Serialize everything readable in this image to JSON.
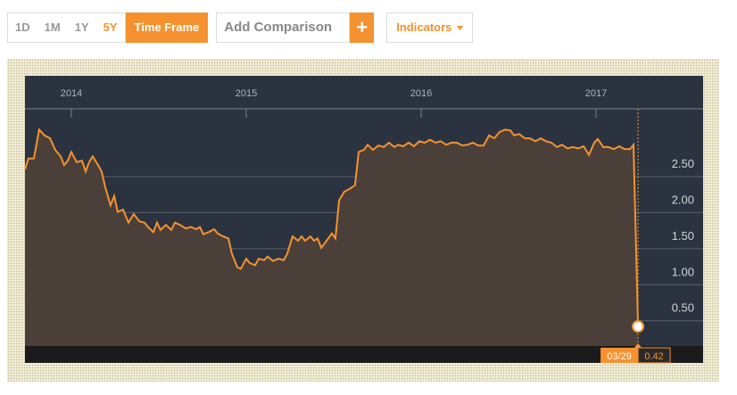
{
  "toolbar": {
    "ranges": [
      "1D",
      "1M",
      "1Y",
      "5Y"
    ],
    "time_frame": "Time Frame",
    "comparison_placeholder": "Add Comparison",
    "add": "+",
    "indicators": "Indicators"
  },
  "chart_data": {
    "type": "area",
    "color": "#f5922f",
    "fill": "#4b3f3a",
    "x": [
      2013.735,
      2013.755,
      2013.786,
      2013.816,
      2013.847,
      2013.878,
      2013.908,
      2013.939,
      2013.959,
      2013.98,
      2014.0,
      2014.031,
      2014.061,
      2014.082,
      2014.102,
      2014.122,
      2014.153,
      2014.173,
      2014.194,
      2014.224,
      2014.245,
      2014.265,
      2014.296,
      2014.327,
      2014.357,
      2014.388,
      2014.418,
      2014.439,
      2014.469,
      2014.49,
      2014.51,
      2014.541,
      2014.571,
      2014.592,
      2014.622,
      2014.653,
      2014.684,
      2014.714,
      2014.735,
      2014.755,
      2014.786,
      2014.816,
      2014.837,
      2014.867,
      2014.898,
      2014.918,
      2014.949,
      2014.969,
      2015.0,
      2015.02,
      2015.051,
      2015.071,
      2015.102,
      2015.122,
      2015.153,
      2015.184,
      2015.214,
      2015.235,
      2015.265,
      2015.296,
      2015.316,
      2015.337,
      2015.367,
      2015.388,
      2015.408,
      2015.429,
      2015.459,
      2015.49,
      2015.51,
      2015.531,
      2015.561,
      2015.592,
      2015.622,
      2015.643,
      2015.673,
      2015.694,
      2015.724,
      2015.755,
      2015.786,
      2015.816,
      2015.847,
      2015.867,
      2015.898,
      2015.929,
      2015.959,
      2015.99,
      2016.02,
      2016.051,
      2016.082,
      2016.112,
      2016.143,
      2016.173,
      2016.204,
      2016.235,
      2016.265,
      2016.296,
      2016.327,
      2016.357,
      2016.388,
      2016.418,
      2016.449,
      2016.48,
      2016.51,
      2016.531,
      2016.561,
      2016.592,
      2016.622,
      2016.653,
      2016.684,
      2016.714,
      2016.745,
      2016.776,
      2016.806,
      2016.837,
      2016.867,
      2016.898,
      2016.929,
      2016.959,
      2016.99,
      2017.01,
      2017.041,
      2017.071,
      2017.102,
      2017.133,
      2017.163,
      2017.194,
      2017.214,
      2017.24
    ],
    "values": [
      2.6,
      2.75,
      2.75,
      3.15,
      3.07,
      3.03,
      2.87,
      2.78,
      2.66,
      2.72,
      2.84,
      2.7,
      2.72,
      2.57,
      2.7,
      2.78,
      2.66,
      2.57,
      2.35,
      2.1,
      2.23,
      2.01,
      2.04,
      1.86,
      1.98,
      1.88,
      1.86,
      1.8,
      1.73,
      1.86,
      1.76,
      1.83,
      1.76,
      1.86,
      1.83,
      1.78,
      1.8,
      1.77,
      1.8,
      1.7,
      1.73,
      1.77,
      1.71,
      1.67,
      1.64,
      1.43,
      1.24,
      1.22,
      1.36,
      1.3,
      1.27,
      1.36,
      1.34,
      1.39,
      1.33,
      1.36,
      1.34,
      1.43,
      1.67,
      1.61,
      1.67,
      1.61,
      1.67,
      1.61,
      1.64,
      1.51,
      1.61,
      1.71,
      1.64,
      2.17,
      2.29,
      2.33,
      2.38,
      2.84,
      2.87,
      2.94,
      2.87,
      2.93,
      2.91,
      2.97,
      2.91,
      2.94,
      2.92,
      2.97,
      2.92,
      2.99,
      2.97,
      3.01,
      2.97,
      2.99,
      2.94,
      2.97,
      2.97,
      2.93,
      2.94,
      2.97,
      2.93,
      2.93,
      3.07,
      3.03,
      3.12,
      3.15,
      3.14,
      3.07,
      3.09,
      3.03,
      3.03,
      2.99,
      3.03,
      2.99,
      2.97,
      2.91,
      2.94,
      2.89,
      2.91,
      2.89,
      2.92,
      2.8,
      2.97,
      3.02,
      2.91,
      2.91,
      2.88,
      2.92,
      2.88,
      2.88,
      2.94,
      0.42
    ],
    "last_date_label": "03/29",
    "xlim": [
      2013.735,
      2017.612
    ],
    "xticks": [
      2014,
      2015,
      2016,
      2017
    ],
    "ylim": [
      0.15,
      3.44
    ],
    "yticks": [
      {
        "value": 0.5,
        "label": "0.50"
      },
      {
        "value": 1,
        "label": "1.00"
      },
      {
        "value": 1.5,
        "label": "1.50"
      },
      {
        "value": 2,
        "label": "2.00"
      },
      {
        "value": 2.5,
        "label": "2.50"
      }
    ],
    "grid": true
  }
}
